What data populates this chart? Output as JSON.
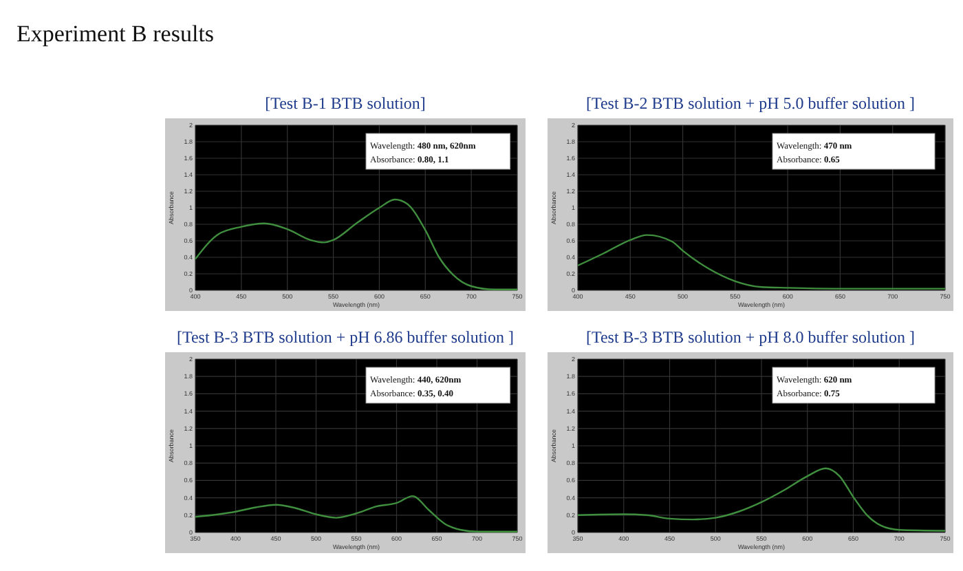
{
  "chart_data": [
    {
      "type": "other",
      "title": "Experiment B results"
    },
    {
      "type": "line",
      "title": "[Test B-1 BTB solution]",
      "xlabel": "Wavelength (nm)",
      "ylabel": "Absorbance",
      "grid": true,
      "marker": "none",
      "line_style": "solid",
      "annotations": [
        "Wavelength: 480 nm, 620nm",
        "Absorbance: 0.80, 1.1"
      ],
      "xlim": [
        400,
        750
      ],
      "xticks": [
        400,
        450,
        500,
        550,
        600,
        650,
        700,
        750
      ],
      "ylim": [
        0,
        2
      ],
      "yticks": [
        0,
        0.2,
        0.4,
        0.6,
        0.8,
        1,
        1.2,
        1.4,
        1.6,
        1.8,
        2
      ],
      "series": [
        {
          "color": "#3f8f3f",
          "x": [
            400,
            425,
            450,
            475,
            500,
            525,
            540,
            550,
            575,
            600,
            617,
            630,
            650,
            665,
            680,
            700,
            725,
            750
          ],
          "values": [
            0.38,
            0.68,
            0.77,
            0.81,
            0.74,
            0.61,
            0.58,
            0.61,
            0.81,
            1.0,
            1.1,
            1.05,
            0.73,
            0.4,
            0.19,
            0.05,
            0.01,
            0.01
          ]
        }
      ]
    },
    {
      "type": "line",
      "title": "[Test B-2 BTB solution + pH 5.0 buffer solution ]",
      "xlabel": "Wavelength (nm)",
      "ylabel": "Absorbance",
      "grid": true,
      "marker": "none",
      "line_style": "solid",
      "annotations": [
        "Wavelength: 470 nm",
        "Absorbance: 0.65"
      ],
      "xlim": [
        400,
        750
      ],
      "xticks": [
        400,
        450,
        500,
        550,
        600,
        650,
        700,
        750
      ],
      "ylim": [
        0,
        2
      ],
      "yticks": [
        0,
        0.2,
        0.4,
        0.6,
        0.8,
        1,
        1.2,
        1.4,
        1.6,
        1.8,
        2
      ],
      "series": [
        {
          "color": "#3f8f3f",
          "x": [
            400,
            425,
            450,
            466,
            490,
            500,
            525,
            550,
            575,
            600,
            650,
            750
          ],
          "values": [
            0.3,
            0.45,
            0.61,
            0.67,
            0.59,
            0.48,
            0.26,
            0.11,
            0.04,
            0.03,
            0.02,
            0.02
          ]
        }
      ]
    },
    {
      "type": "line",
      "title": "[Test B-3 BTB solution + pH 6.86 buffer solution ]",
      "xlabel": "Wavelength (nm)",
      "ylabel": "Absorbance",
      "grid": true,
      "marker": "none",
      "line_style": "solid",
      "annotations": [
        "Wavelength: 440, 620nm",
        "Absorbance: 0.35, 0.40"
      ],
      "xlim": [
        350,
        750
      ],
      "xticks": [
        350,
        400,
        450,
        500,
        550,
        600,
        650,
        700,
        750
      ],
      "ylim": [
        0,
        2
      ],
      "yticks": [
        0,
        0.2,
        0.4,
        0.6,
        0.8,
        1,
        1.2,
        1.4,
        1.6,
        1.8,
        2
      ],
      "series": [
        {
          "color": "#3f8f3f",
          "x": [
            350,
            400,
            425,
            450,
            475,
            500,
            525,
            550,
            575,
            600,
            620,
            640,
            660,
            680,
            700,
            750
          ],
          "values": [
            0.18,
            0.24,
            0.29,
            0.32,
            0.28,
            0.21,
            0.17,
            0.22,
            0.3,
            0.34,
            0.42,
            0.26,
            0.1,
            0.03,
            0.01,
            0.01
          ]
        }
      ]
    },
    {
      "type": "line",
      "title": "[Test B-3 BTB solution + pH 8.0 buffer solution ]",
      "xlabel": "Wavelength (nm)",
      "ylabel": "Absorbance",
      "grid": true,
      "marker": "none",
      "line_style": "solid",
      "annotations": [
        "Wavelength: 620 nm",
        "Absorbance: 0.75"
      ],
      "xlim": [
        350,
        750
      ],
      "xticks": [
        350,
        400,
        450,
        500,
        550,
        600,
        650,
        700,
        750
      ],
      "ylim": [
        0,
        2
      ],
      "yticks": [
        0,
        0.2,
        0.4,
        0.6,
        0.8,
        1,
        1.2,
        1.4,
        1.6,
        1.8,
        2
      ],
      "series": [
        {
          "color": "#3f8f3f",
          "x": [
            350,
            400,
            425,
            450,
            475,
            500,
            525,
            550,
            575,
            600,
            620,
            635,
            650,
            665,
            680,
            700,
            750
          ],
          "values": [
            0.2,
            0.21,
            0.2,
            0.16,
            0.15,
            0.17,
            0.24,
            0.35,
            0.49,
            0.65,
            0.74,
            0.65,
            0.41,
            0.2,
            0.08,
            0.03,
            0.02
          ]
        }
      ]
    }
  ]
}
